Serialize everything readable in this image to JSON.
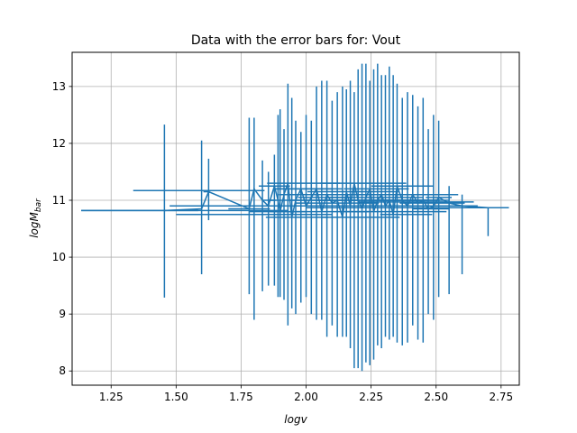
{
  "chart_data": {
    "type": "scatter",
    "title": "Data with the error bars for: Vout",
    "xlabel": "logv",
    "ylabel_main": "logM",
    "ylabel_sub": "bar",
    "xlim": [
      1.1,
      2.82
    ],
    "ylim": [
      7.75,
      13.6
    ],
    "x_ticks": [
      1.25,
      1.5,
      1.75,
      2.0,
      2.25,
      2.5,
      2.75
    ],
    "x_tick_labels": [
      "1.25",
      "1.50",
      "1.75",
      "2.00",
      "2.25",
      "2.50",
      "2.75"
    ],
    "y_ticks": [
      8,
      9,
      10,
      11,
      12,
      13
    ],
    "y_tick_labels": [
      "8",
      "9",
      "10",
      "11",
      "12",
      "13"
    ],
    "grid": true,
    "legend": "none",
    "color": "#1f77b4",
    "series": [
      {
        "x": [
          1.455,
          1.598,
          1.625,
          1.781,
          1.8,
          1.832,
          1.855,
          1.878,
          1.892,
          1.9,
          1.915,
          1.93,
          1.945,
          1.96,
          1.98,
          2.0,
          2.02,
          2.04,
          2.06,
          2.08,
          2.1,
          2.12,
          2.14,
          2.155,
          2.17,
          2.185,
          2.2,
          2.215,
          2.23,
          2.245,
          2.26,
          2.275,
          2.29,
          2.305,
          2.32,
          2.335,
          2.35,
          2.37,
          2.39,
          2.41,
          2.43,
          2.45,
          2.47,
          2.49,
          2.51,
          2.55,
          2.6,
          2.7
        ],
        "y": [
          10.82,
          10.85,
          11.15,
          10.85,
          11.2,
          11.0,
          10.9,
          11.25,
          11.0,
          10.8,
          11.1,
          11.3,
          10.7,
          11.0,
          11.2,
          10.9,
          11.05,
          11.2,
          10.8,
          11.1,
          10.95,
          11.0,
          10.7,
          11.15,
          10.9,
          11.3,
          11.0,
          10.85,
          11.05,
          11.2,
          10.8,
          11.0,
          11.1,
          10.9,
          11.0,
          10.75,
          11.25,
          11.0,
          10.9,
          11.1,
          10.95,
          11.0,
          10.85,
          10.9,
          11.05,
          10.95,
          10.9,
          10.87
        ],
        "yerr_low": [
          1.53,
          1.15,
          0.5,
          1.5,
          2.3,
          1.6,
          1.4,
          1.75,
          1.7,
          1.5,
          1.85,
          2.5,
          1.6,
          2.0,
          2.0,
          1.6,
          2.05,
          2.3,
          1.9,
          2.5,
          2.15,
          2.4,
          2.1,
          2.55,
          2.5,
          3.25,
          2.95,
          2.85,
          2.9,
          3.1,
          2.6,
          2.55,
          2.7,
          2.3,
          2.45,
          2.15,
          2.75,
          2.55,
          2.4,
          2.3,
          2.4,
          2.5,
          1.85,
          2.0,
          1.75,
          1.6,
          1.2,
          0.5
        ],
        "yerr_high": [
          1.51,
          1.2,
          0.58,
          1.6,
          1.25,
          0.7,
          0.6,
          0.55,
          1.5,
          1.8,
          1.15,
          1.75,
          2.1,
          1.4,
          1.0,
          1.6,
          1.35,
          1.8,
          2.3,
          2.0,
          1.8,
          1.9,
          2.3,
          1.8,
          2.2,
          1.6,
          2.3,
          2.55,
          2.35,
          1.9,
          2.5,
          2.4,
          2.1,
          2.3,
          2.35,
          2.45,
          1.8,
          1.8,
          2.0,
          1.75,
          1.7,
          1.8,
          1.4,
          1.6,
          1.35,
          0.3,
          0.2,
          0.0
        ],
        "xerr_low": [
          0.32,
          0.0,
          0.02,
          0.08,
          0.0,
          0.0,
          0.0,
          0.06,
          0.04,
          0.12,
          0.02,
          0.08,
          0.1,
          0.02,
          0.1,
          0.13,
          0.05,
          0.16,
          0.2,
          0.1,
          0.14,
          0.1,
          0.08,
          0.15,
          0.12,
          0.13,
          0.16,
          0.0,
          0.14,
          0.1,
          0.11,
          0.1,
          0.08,
          0.1,
          0.06,
          0.05,
          0.1,
          0.08,
          0.05,
          0.06,
          0.07,
          0.05,
          0.06,
          0.04,
          0.05,
          0.03,
          0.04,
          0.0
        ],
        "xerr_high": [
          0.13,
          0.0,
          0.0,
          0.08,
          0.0,
          0.05,
          0.1,
          0.06,
          0.12,
          0.1,
          0.15,
          0.2,
          0.14,
          0.18,
          0.12,
          0.1,
          0.15,
          0.1,
          0.18,
          0.16,
          0.18,
          0.2,
          0.22,
          0.2,
          0.16,
          0.2,
          0.25,
          0.0,
          0.22,
          0.15,
          0.28,
          0.24,
          0.21,
          0.2,
          0.19,
          0.15,
          0.14,
          0.1,
          0.12,
          0.12,
          0.09,
          0.1,
          0.08,
          0.09,
          0.05,
          0.06,
          0.06,
          0.08
        ]
      }
    ],
    "extra_xbars": [
      {
        "x1": 1.135,
        "x2": 1.93,
        "y": 10.82
      },
      {
        "x1": 1.335,
        "x2": 1.84,
        "y": 11.17
      },
      {
        "x1": 1.5,
        "x2": 2.1,
        "y": 10.75
      },
      {
        "x1": 1.475,
        "x2": 1.995,
        "y": 10.9
      },
      {
        "x1": 2.0,
        "x2": 2.78,
        "y": 10.87
      },
      {
        "x1": 2.2,
        "x2": 2.645,
        "y": 10.97
      },
      {
        "x1": 2.25,
        "x2": 2.585,
        "y": 11.1
      }
    ]
  }
}
